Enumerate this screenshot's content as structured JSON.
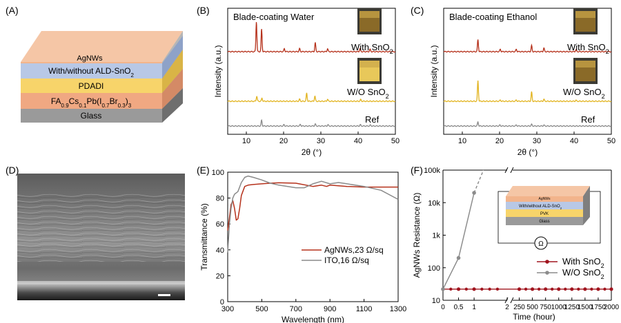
{
  "panels": {
    "A": {
      "label": "(A)",
      "layers": [
        "AgNWs",
        "With/without ALD-SnO",
        "PDADI",
        "FA",
        "Glass"
      ]
    },
    "B": {
      "label": "(B)"
    },
    "C": {
      "label": "(C)"
    },
    "D": {
      "label": "(D)"
    },
    "E": {
      "label": "(E)"
    },
    "F": {
      "label": "(F)",
      "inset_layers": [
        "AgNWs",
        "With/without ALD-SnO",
        "PVK",
        "Glass"
      ],
      "ohm": "Ω"
    }
  },
  "colors": {
    "water_with": "#b5301a",
    "water_wo": "#e2b420",
    "ref": "#8a8a8a",
    "agnw": "#b5301a",
    "ito": "#8a8a8a",
    "with": "#a0141e",
    "wo": "#8c8c8c",
    "layer_agnw": "#f2b48c",
    "layer_sno2": "#b8c8e6",
    "layer_pdadi": "#f7d46a",
    "layer_pvk": "#f0a882",
    "layer_glass": "#9a9a9a"
  },
  "chart_data": [
    {
      "type": "line",
      "title": "Blade-coating Water",
      "xlabel": "2θ (°)",
      "ylabel": "Intensity (a.u.)",
      "xlim": [
        5,
        50
      ],
      "xticks": [
        "10",
        "20",
        "30",
        "40",
        "50"
      ],
      "series": [
        {
          "name": "With SnO2",
          "peaks": [
            [
              12.7,
              1.0
            ],
            [
              14.1,
              0.75
            ],
            [
              20.2,
              0.1
            ],
            [
              24.3,
              0.1
            ],
            [
              28.5,
              0.3
            ],
            [
              31.8,
              0.1
            ],
            [
              40.5,
              0.1
            ],
            [
              43.2,
              0.08
            ]
          ]
        },
        {
          "name": "W/O SnO2",
          "peaks": [
            [
              12.8,
              0.25
            ],
            [
              14.2,
              0.15
            ],
            [
              24.3,
              0.1
            ],
            [
              26.2,
              0.4
            ],
            [
              28.4,
              0.25
            ],
            [
              31.8,
              0.1
            ],
            [
              40.7,
              0.08
            ]
          ]
        },
        {
          "name": "Ref",
          "peaks": [
            [
              14.1,
              0.35
            ],
            [
              20.1,
              0.08
            ],
            [
              24.5,
              0.1
            ],
            [
              28.5,
              0.12
            ],
            [
              31.9,
              0.08
            ],
            [
              40.6,
              0.08
            ],
            [
              43.3,
              0.06
            ]
          ]
        }
      ],
      "labels": {
        "with": "With SnO",
        "wo": "W/O SnO",
        "ref": "Ref",
        "sub": "2"
      }
    },
    {
      "type": "line",
      "title": "Blade-coating Ethanol",
      "xlabel": "2θ (°)",
      "ylabel": "Intensity (a.u.)",
      "xlim": [
        5,
        50
      ],
      "xticks": [
        "10",
        "20",
        "30",
        "40",
        "50"
      ],
      "series": [
        {
          "name": "With SnO2",
          "peaks": [
            [
              14.2,
              0.4
            ],
            [
              20.2,
              0.08
            ],
            [
              24.5,
              0.08
            ],
            [
              28.6,
              0.2
            ],
            [
              31.9,
              0.12
            ],
            [
              40.5,
              0.06
            ]
          ]
        },
        {
          "name": "W/O SnO2",
          "peaks": [
            [
              14.2,
              1.0
            ],
            [
              20.2,
              0.06
            ],
            [
              24.5,
              0.06
            ],
            [
              28.6,
              0.45
            ],
            [
              31.9,
              0.1
            ],
            [
              40.5,
              0.05
            ]
          ]
        },
        {
          "name": "Ref",
          "peaks": [
            [
              14.2,
              0.25
            ],
            [
              20.1,
              0.06
            ],
            [
              24.5,
              0.06
            ],
            [
              28.6,
              0.1
            ],
            [
              31.9,
              0.06
            ]
          ]
        }
      ],
      "labels": {
        "with": "With SnO",
        "wo": "W/O SnO",
        "ref": "Ref",
        "sub": "2"
      }
    },
    {
      "type": "line",
      "xlabel": "Wavelength (nm)",
      "ylabel": "Transmittance (%)",
      "xlim": [
        300,
        1300
      ],
      "ylim": [
        0,
        100
      ],
      "xticks": [
        "300",
        "500",
        "700",
        "900",
        "1100",
        "1300"
      ],
      "yticks": [
        "0",
        "20",
        "40",
        "60",
        "80",
        "100"
      ],
      "series": [
        {
          "name": "AgNWs,23 Ω/sq",
          "x": [
            300,
            310,
            320,
            330,
            340,
            350,
            360,
            370,
            380,
            400,
            420,
            450,
            500,
            550,
            600,
            700,
            800,
            850,
            880,
            900,
            1000,
            1100,
            1200,
            1300
          ],
          "y": [
            55,
            65,
            75,
            78,
            72,
            63,
            64,
            72,
            82,
            89,
            90,
            90.5,
            91,
            91.5,
            91.8,
            91.5,
            89,
            90,
            89,
            90,
            89,
            88.5,
            88.5,
            88.5
          ]
        },
        {
          "name": "ITO,16 Ω/sq",
          "x": [
            300,
            310,
            320,
            330,
            340,
            360,
            380,
            400,
            420,
            450,
            500,
            550,
            600,
            700,
            750,
            800,
            850,
            900,
            950,
            1000,
            1100,
            1200,
            1300
          ],
          "y": [
            38,
            60,
            72,
            80,
            83,
            85,
            92,
            96,
            97,
            96,
            94,
            91.5,
            90,
            88,
            88,
            91,
            93,
            91,
            92,
            91,
            89,
            86,
            79
          ]
        }
      ]
    },
    {
      "type": "line",
      "xlabel": "Time (hour)",
      "ylabel": "AgNWs Resistance (Ω)",
      "ylog": true,
      "ylim": [
        10,
        100000
      ],
      "yticks": [
        "10",
        "100",
        "1k",
        "10k",
        "100k"
      ],
      "xticks": [
        "0",
        "0.5",
        "1",
        "2",
        "250",
        "500",
        "750",
        "1000",
        "1250",
        "1500",
        "1750",
        "2000"
      ],
      "series": [
        {
          "name": "With SnO2",
          "x": [
            0,
            0.5,
            1,
            250,
            500,
            750,
            1000,
            1250,
            1500,
            1750,
            2000
          ],
          "y": [
            22,
            22,
            22,
            22,
            22,
            22,
            22,
            22,
            22,
            22,
            22
          ]
        },
        {
          "name": "W/O SnO2",
          "x": [
            0,
            0.5,
            1,
            1.3
          ],
          "y": [
            22,
            200,
            20000,
            100000
          ]
        }
      ],
      "legend": {
        "with": "With SnO",
        "wo": "W/O SnO",
        "sub": "2"
      }
    }
  ]
}
